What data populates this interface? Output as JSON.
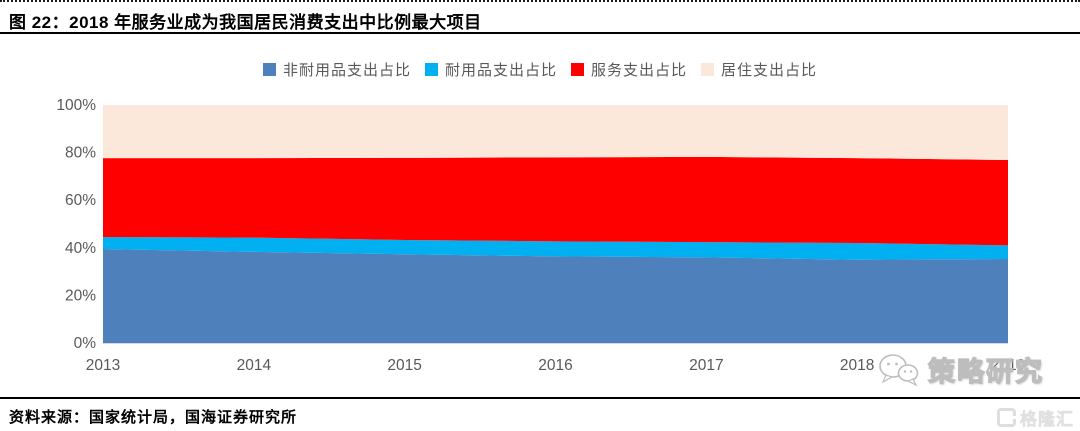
{
  "figure": {
    "title": "图 22：2018 年服务业成为我国居民消费支出中比例最大项目",
    "source": "资料来源：国家统计局，国海证券研究所"
  },
  "watermark": {
    "wechat_label": "策略研究",
    "logo_label": "格隆汇"
  },
  "colors": {
    "nondurable_blue": "#4E80BC",
    "durable_cyan": "#00B0F0",
    "services_red": "#FE0000",
    "housing_peach": "#FBE8DA",
    "axis_text": "#595959",
    "baseline": "#D9D9D9"
  },
  "chart_data": {
    "type": "area",
    "stacked": true,
    "title": "",
    "xlabel": "",
    "ylabel": "",
    "grid": false,
    "legend_position": "top",
    "ylim": [
      0,
      100
    ],
    "yticks": [
      0,
      20,
      40,
      60,
      80,
      100
    ],
    "ytick_labels": [
      "0%",
      "20%",
      "40%",
      "60%",
      "80%",
      "100%"
    ],
    "categories": [
      "2013",
      "2014",
      "2015",
      "2016",
      "2017",
      "2018",
      "2019"
    ],
    "series": [
      {
        "name": "非耐用品支出占比",
        "color": "#4E80BC",
        "values": [
          39.5,
          38.3,
          37.3,
          36.4,
          36.0,
          35.0,
          35.3
        ]
      },
      {
        "name": "耐用品支出占比",
        "color": "#00B0F0",
        "values": [
          5.0,
          6.0,
          6.0,
          6.3,
          6.4,
          7.0,
          5.7
        ]
      },
      {
        "name": "服务支出占比",
        "color": "#FE0000",
        "values": [
          33.2,
          33.4,
          34.5,
          35.3,
          35.8,
          35.7,
          35.9
        ]
      },
      {
        "name": "居住支出占比",
        "color": "#FBE8DA",
        "values": [
          22.3,
          22.3,
          22.2,
          22.0,
          21.8,
          22.3,
          23.1
        ]
      }
    ]
  }
}
